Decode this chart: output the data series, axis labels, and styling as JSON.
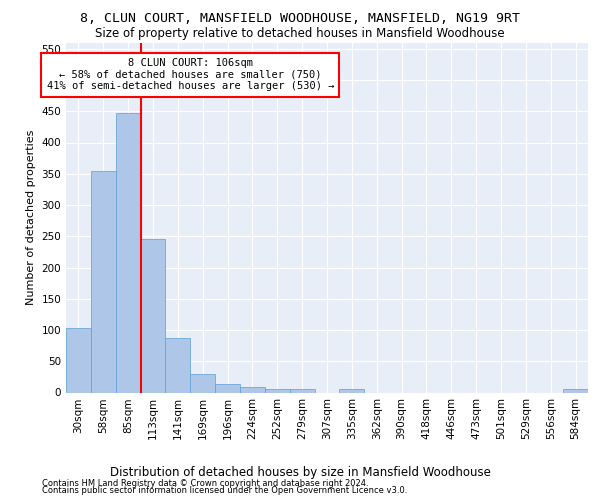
{
  "title": "8, CLUN COURT, MANSFIELD WOODHOUSE, MANSFIELD, NG19 9RT",
  "subtitle": "Size of property relative to detached houses in Mansfield Woodhouse",
  "xlabel": "Distribution of detached houses by size in Mansfield Woodhouse",
  "ylabel": "Number of detached properties",
  "footer_line1": "Contains HM Land Registry data © Crown copyright and database right 2024.",
  "footer_line2": "Contains public sector information licensed under the Open Government Licence v3.0.",
  "bins": [
    "30sqm",
    "58sqm",
    "85sqm",
    "113sqm",
    "141sqm",
    "169sqm",
    "196sqm",
    "224sqm",
    "252sqm",
    "279sqm",
    "307sqm",
    "335sqm",
    "362sqm",
    "390sqm",
    "418sqm",
    "446sqm",
    "473sqm",
    "501sqm",
    "529sqm",
    "556sqm",
    "584sqm"
  ],
  "values": [
    103,
    354,
    447,
    246,
    87,
    30,
    13,
    9,
    6,
    6,
    0,
    5,
    0,
    0,
    0,
    0,
    0,
    0,
    0,
    0,
    5
  ],
  "bar_color": "#aec6e8",
  "bar_edge_color": "#5a9fd4",
  "annotation_line1": "8 CLUN COURT: 106sqm",
  "annotation_line2": "← 58% of detached houses are smaller (750)",
  "annotation_line3": "41% of semi-detached houses are larger (530) →",
  "ylim": [
    0,
    560
  ],
  "yticks": [
    0,
    50,
    100,
    150,
    200,
    250,
    300,
    350,
    400,
    450,
    500,
    550
  ],
  "background_color": "#e8eef8",
  "title_fontsize": 9.5,
  "subtitle_fontsize": 8.5,
  "ylabel_fontsize": 8,
  "xlabel_fontsize": 8.5,
  "tick_fontsize": 7.5,
  "annot_fontsize": 7.5,
  "footer_fontsize": 6
}
